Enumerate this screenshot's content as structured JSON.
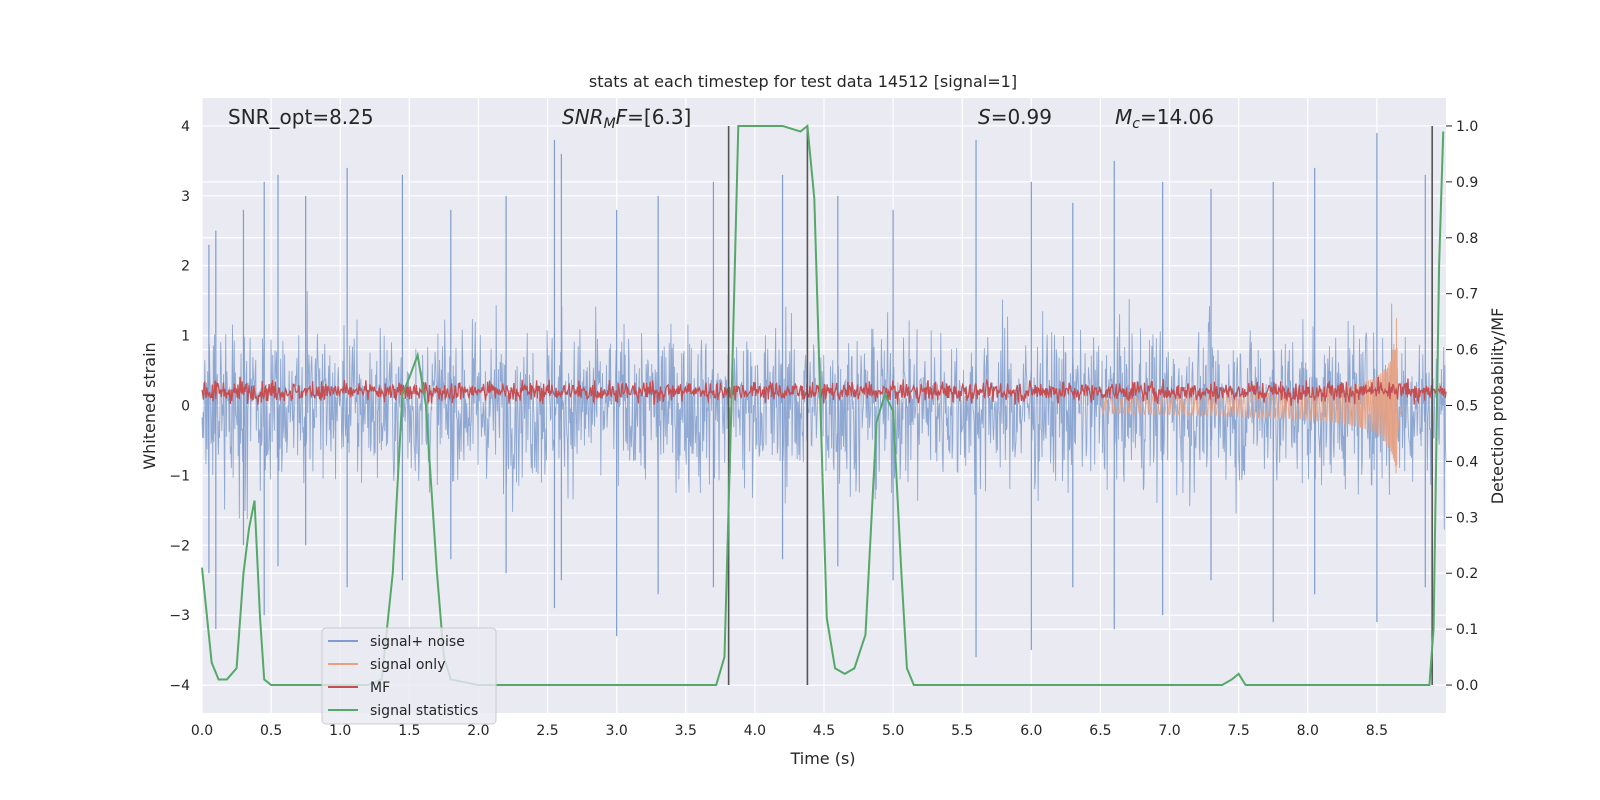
{
  "chart_data": {
    "type": "line",
    "title": "stats at each timestep for test data 14512 [signal=1]",
    "xlabel": "Time (s)",
    "ylabel": "Whitened strain",
    "ylabel_right": "Detection probability/MF",
    "xlim": [
      0.0,
      9.0
    ],
    "ylim": [
      -4.4,
      4.4
    ],
    "ylim_right": [
      -0.05,
      1.05
    ],
    "x_ticks": [
      0.0,
      0.5,
      1.0,
      1.5,
      2.0,
      2.5,
      3.0,
      3.5,
      4.0,
      4.5,
      5.0,
      5.5,
      6.0,
      6.5,
      7.0,
      7.5,
      8.0,
      8.5
    ],
    "x_tick_labels": [
      "0.0",
      "0.5",
      "1.0",
      "1.5",
      "2.0",
      "2.5",
      "3.0",
      "3.5",
      "4.0",
      "4.5",
      "5.0",
      "5.5",
      "6.0",
      "6.5",
      "7.0",
      "7.5",
      "8.0",
      "8.5"
    ],
    "y_ticks": [
      4,
      3,
      2,
      1,
      0,
      -1,
      -2,
      -3,
      -4
    ],
    "y_tick_labels": [
      "4",
      "3",
      "2",
      "1",
      "0",
      "−1",
      "−2",
      "−3",
      "−4"
    ],
    "y_ticks_right": [
      1.0,
      0.9,
      0.8,
      0.7,
      0.6,
      0.5,
      0.4,
      0.3,
      0.2,
      0.1,
      0.0
    ],
    "y_tick_labels_right": [
      "1.0",
      "0.9",
      "0.8",
      "0.7",
      "0.6",
      "0.5",
      "0.4",
      "0.3",
      "0.2",
      "0.1",
      "0.0"
    ],
    "grid": true,
    "legend_position": "lower-left",
    "annotations": {
      "snr_opt": "SNR_opt=8.25",
      "snr_mf_italic": "SNR",
      "snr_mf_sub": "M",
      "snr_mf_italic2": "F",
      "snr_mf_rest": "=[6.3]",
      "s_italic": "S",
      "s_rest": "=0.99",
      "mc_italic": "M",
      "mc_sub": "c",
      "mc_rest": "=14.06"
    },
    "vertical_lines_x": [
      3.81,
      4.38,
      8.9
    ],
    "vertical_lines_range": [
      -4.0,
      4.0
    ],
    "colors": {
      "noise": "#7f9ccc",
      "signal": "#e8a07f",
      "mf": "#c44e52",
      "stat": "#55a868",
      "vline": "#555555",
      "bg": "#eaeaf2",
      "grid": "#ffffff"
    },
    "series": [
      {
        "name": "signal+ noise",
        "role": "noise",
        "envelope_note": "dense whitened noise, typical peaks",
        "peaks": [
          [
            0.05,
            2.3,
            -2.4
          ],
          [
            0.1,
            2.5,
            -3.2
          ],
          [
            0.3,
            2.8,
            -2.0
          ],
          [
            0.45,
            3.2,
            -3.0
          ],
          [
            0.55,
            3.3,
            -2.3
          ],
          [
            0.75,
            3.0,
            -2.0
          ],
          [
            1.05,
            3.4,
            -2.6
          ],
          [
            1.45,
            3.3,
            -2.5
          ],
          [
            1.8,
            2.8,
            -2.2
          ],
          [
            2.2,
            3.0,
            -2.4
          ],
          [
            2.55,
            3.8,
            -2.9
          ],
          [
            2.6,
            3.6,
            -2.5
          ],
          [
            3.0,
            2.8,
            -3.3
          ],
          [
            3.3,
            3.0,
            -2.7
          ],
          [
            3.7,
            3.2,
            -2.6
          ],
          [
            4.2,
            3.3,
            -2.2
          ],
          [
            4.6,
            3.0,
            -2.3
          ],
          [
            5.0,
            2.8,
            -2.5
          ],
          [
            5.6,
            3.8,
            -3.6
          ],
          [
            6.0,
            3.2,
            -3.5
          ],
          [
            6.3,
            2.9,
            -2.6
          ],
          [
            6.6,
            3.5,
            -3.2
          ],
          [
            6.95,
            3.2,
            -3.0
          ],
          [
            7.3,
            3.1,
            -2.5
          ],
          [
            7.75,
            3.2,
            -3.1
          ],
          [
            8.05,
            3.4,
            -2.7
          ],
          [
            8.5,
            3.9,
            -3.1
          ],
          [
            8.85,
            3.3,
            -2.6
          ]
        ]
      },
      {
        "name": "signal only",
        "role": "signal",
        "chirp_start": 6.5,
        "merger_time": 8.65,
        "peak_amplitude": 1.7
      },
      {
        "name": "MF",
        "role": "mf",
        "baseline": 0.2,
        "spread": 0.16
      },
      {
        "name": "signal statistics",
        "role": "stat",
        "x": [
          0.0,
          0.07,
          0.12,
          0.18,
          0.25,
          0.3,
          0.34,
          0.38,
          0.42,
          0.45,
          0.5,
          0.6,
          1.0,
          1.2,
          1.3,
          1.38,
          1.45,
          1.5,
          1.56,
          1.62,
          1.7,
          1.75,
          1.8,
          2.0,
          3.0,
          3.72,
          3.78,
          3.83,
          3.88,
          4.0,
          4.2,
          4.33,
          4.38,
          4.43,
          4.48,
          4.52,
          4.58,
          4.65,
          4.72,
          4.8,
          4.88,
          4.94,
          5.0,
          5.06,
          5.1,
          5.15,
          5.3,
          6.0,
          7.0,
          7.38,
          7.45,
          7.5,
          7.55,
          7.6,
          8.0,
          8.5,
          8.88,
          8.91,
          8.95,
          8.98
        ],
        "y": [
          0.21,
          0.04,
          0.01,
          0.01,
          0.03,
          0.2,
          0.28,
          0.33,
          0.12,
          0.01,
          0.0,
          0.0,
          0.0,
          0.0,
          0.01,
          0.2,
          0.52,
          0.55,
          0.59,
          0.5,
          0.2,
          0.05,
          0.01,
          0.0,
          0.0,
          0.0,
          0.05,
          0.5,
          1.0,
          1.0,
          1.0,
          0.99,
          1.0,
          0.87,
          0.45,
          0.12,
          0.03,
          0.02,
          0.03,
          0.09,
          0.47,
          0.52,
          0.49,
          0.2,
          0.03,
          0.0,
          0.0,
          0.0,
          0.0,
          0.0,
          0.01,
          0.02,
          0.0,
          0.0,
          0.0,
          0.0,
          0.0,
          0.1,
          0.75,
          0.99
        ]
      }
    ]
  }
}
